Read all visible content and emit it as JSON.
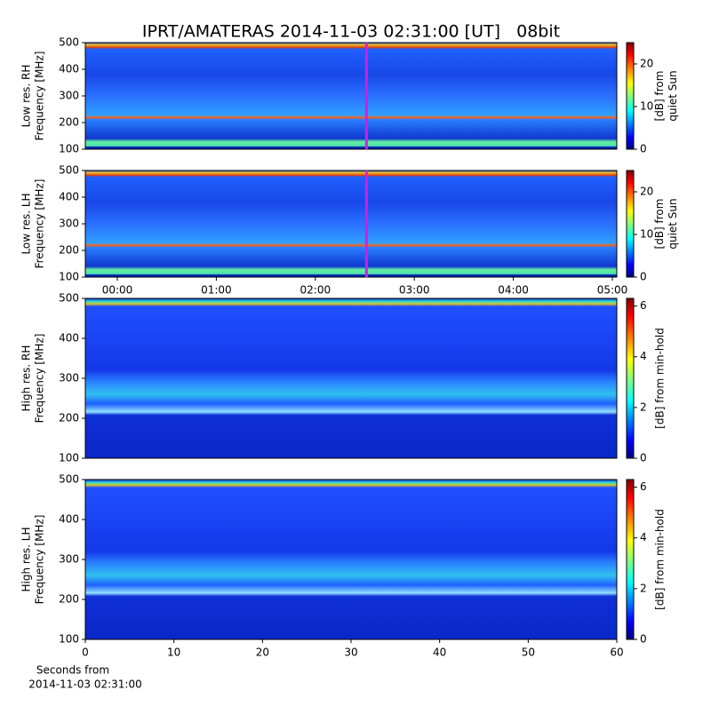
{
  "chart_data": [
    {
      "type": "heatmap",
      "title": "IPRT/AMATERAS 2014-11-03 02:31:00 [UT]   08bit",
      "ylabel": [
        "Low res. RH",
        "Frequency [MHz]"
      ],
      "ylim": [
        100,
        500
      ],
      "yticks": [
        100,
        200,
        300,
        400,
        500
      ],
      "xlim": [
        -19.4,
        302.7
      ],
      "marker_x": 151,
      "marker_color": "#d020e0",
      "colormap": "jet",
      "clim": [
        0,
        25
      ],
      "cticks": [
        0,
        10,
        20
      ],
      "colorbar_label": [
        "[dB] from",
        "quiet Sun"
      ]
    },
    {
      "type": "heatmap",
      "ylabel": [
        "Low res. LH",
        "Frequency [MHz]"
      ],
      "ylim": [
        100,
        500
      ],
      "yticks": [
        100,
        200,
        300,
        400,
        500
      ],
      "xlim": [
        -19.4,
        302.7
      ],
      "xticks": [
        {
          "value": 0,
          "label": "00:00"
        },
        {
          "value": 60,
          "label": "01:00"
        },
        {
          "value": 120,
          "label": "02:00"
        },
        {
          "value": 180,
          "label": "03:00"
        },
        {
          "value": 240,
          "label": "04:00"
        },
        {
          "value": 300,
          "label": "05:00"
        }
      ],
      "marker_x": 151,
      "marker_color": "#d020e0",
      "colormap": "jet",
      "clim": [
        0,
        25
      ],
      "cticks": [
        0,
        10,
        20
      ],
      "colorbar_label": [
        "[dB] from",
        "quiet Sun"
      ]
    },
    {
      "type": "heatmap",
      "ylabel": [
        "High res. RH",
        "Frequency [MHz]"
      ],
      "ylim": [
        100,
        500
      ],
      "yticks": [
        100,
        200,
        300,
        400,
        500
      ],
      "xlim": [
        0,
        60
      ],
      "colormap": "jet",
      "clim": [
        0,
        6.3
      ],
      "cticks": [
        0,
        2,
        4,
        6
      ],
      "colorbar_label": [
        "[dB] from min-hold"
      ]
    },
    {
      "type": "heatmap",
      "ylabel": [
        "High res. LH",
        "Frequency [MHz]"
      ],
      "ylim": [
        100,
        500
      ],
      "yticks": [
        100,
        200,
        300,
        400,
        500
      ],
      "xlim": [
        0,
        60
      ],
      "xticks": [
        0,
        10,
        20,
        30,
        40,
        50,
        60
      ],
      "xlabel": [
        "Seconds from",
        "2014-11-03 02:31:00"
      ],
      "colormap": "jet",
      "clim": [
        0,
        6.3
      ],
      "cticks": [
        0,
        2,
        4,
        6
      ],
      "colorbar_label": [
        "[dB] from min-hold"
      ]
    }
  ]
}
